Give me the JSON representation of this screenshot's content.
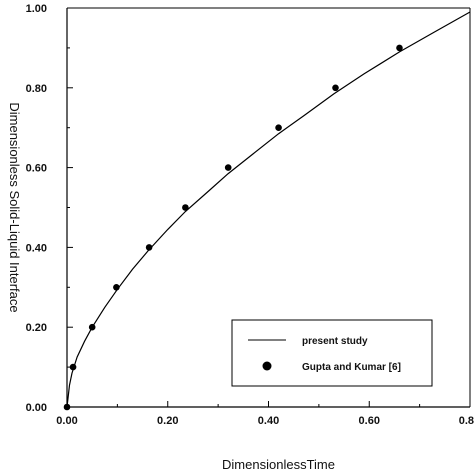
{
  "chart_data": {
    "type": "scatter",
    "xlabel": "DimensionlessTime",
    "ylabel": "Dimensionless Solid-Liquid Interface",
    "xlim": [
      0,
      0.8
    ],
    "ylim": [
      0,
      1.0
    ],
    "x_ticks": [
      "0.00",
      "0.20",
      "0.40",
      "0.60",
      "0.8"
    ],
    "y_ticks": [
      "0.00",
      "0.20",
      "0.40",
      "0.60",
      "0.80",
      "1.00"
    ],
    "grid": false,
    "legend_position": "bottom-right",
    "series": [
      {
        "name": "present study",
        "kind": "line",
        "color": "#000000",
        "x": [
          0,
          0.005,
          0.01,
          0.02,
          0.035,
          0.05,
          0.075,
          0.1,
          0.13,
          0.16,
          0.2,
          0.235,
          0.28,
          0.32,
          0.37,
          0.42,
          0.47,
          0.53,
          0.59,
          0.66,
          0.73,
          0.8
        ],
        "y": [
          0,
          0.055,
          0.085,
          0.125,
          0.165,
          0.2,
          0.25,
          0.295,
          0.345,
          0.39,
          0.445,
          0.49,
          0.54,
          0.585,
          0.635,
          0.685,
          0.73,
          0.785,
          0.835,
          0.89,
          0.94,
          0.99
        ]
      },
      {
        "name": "Gupta and Kumar [6]",
        "kind": "scatter",
        "color": "#000000",
        "x": [
          0.0,
          0.012,
          0.05,
          0.098,
          0.163,
          0.235,
          0.32,
          0.42,
          0.533,
          0.66
        ],
        "y": [
          0.0,
          0.1,
          0.2,
          0.3,
          0.4,
          0.5,
          0.6,
          0.7,
          0.8,
          0.9
        ]
      }
    ]
  }
}
